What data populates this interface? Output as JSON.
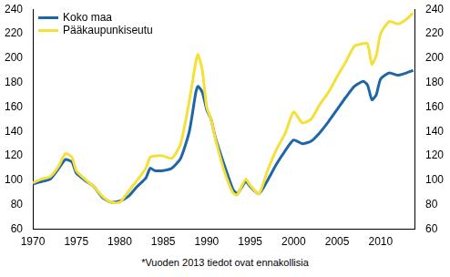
{
  "chart_data": {
    "type": "line",
    "annotations": [
      "*Vuoden 2013 tiedot ovat ennakollisia"
    ],
    "x": [
      1970,
      1971,
      1972,
      1973,
      1973.75,
      1974.5,
      1975,
      1976,
      1977,
      1978,
      1979,
      1980,
      1981,
      1982,
      1983,
      1983.5,
      1984,
      1985,
      1986,
      1987,
      1988,
      1988.75,
      1989,
      1989.5,
      1990,
      1990.5,
      1991,
      1992,
      1993,
      1993.5,
      1994,
      1994.5,
      1995,
      1996,
      1997,
      1998,
      1999,
      2000,
      2001,
      2002,
      2003,
      2004,
      2005,
      2006,
      2007,
      2008,
      2008.5,
      2009,
      2009.5,
      2010,
      2011,
      2012,
      2013,
      2013.75
    ],
    "series": [
      {
        "name": "Koko maa",
        "color": "#1f66a9",
        "values": [
          97,
          99,
          101,
          110,
          117,
          115,
          106,
          100,
          95,
          86,
          82,
          83,
          87,
          95,
          102,
          110,
          108,
          108,
          110,
          118,
          140,
          172,
          177,
          172,
          158,
          150,
          135,
          113,
          93,
          89,
          94,
          99,
          95,
          89,
          100,
          113,
          124,
          133,
          130,
          132,
          139,
          148,
          158,
          168,
          177,
          181,
          178,
          166,
          170,
          183,
          188,
          186,
          188,
          190
        ]
      },
      {
        "name": "Pääkaupunkiseutu",
        "color": "#f5e03a",
        "values": [
          98,
          101,
          103,
          112,
          122,
          119,
          108,
          101,
          95,
          87,
          82,
          82,
          91,
          100,
          110,
          119,
          120,
          120,
          118,
          130,
          165,
          197,
          203,
          190,
          160,
          150,
          134,
          108,
          90,
          88,
          95,
          101,
          96,
          89,
          108,
          125,
          138,
          156,
          147,
          150,
          162,
          172,
          185,
          197,
          210,
          212,
          212,
          195,
          202,
          220,
          230,
          228,
          232,
          237
        ]
      }
    ],
    "xlim": [
      1970,
      2014
    ],
    "xticks": [
      1970,
      1975,
      1980,
      1985,
      1990,
      1995,
      2000,
      2005,
      2010
    ],
    "ylim": [
      60,
      240
    ],
    "yticks": [
      60,
      80,
      100,
      120,
      140,
      160,
      180,
      200,
      220,
      240
    ],
    "y2lim": [
      60,
      240
    ],
    "y2ticks": [
      60,
      80,
      100,
      120,
      140,
      160,
      180,
      200,
      220,
      240
    ],
    "grid": false,
    "legend": "top-left"
  }
}
